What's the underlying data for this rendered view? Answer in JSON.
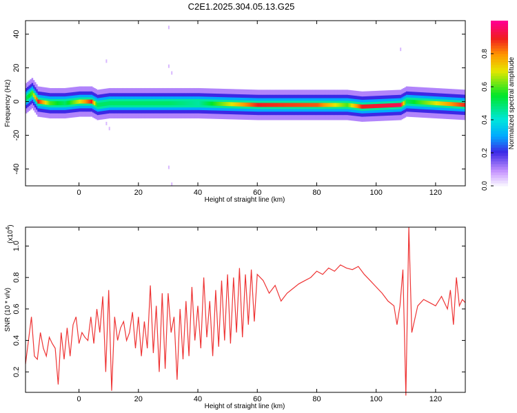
{
  "title": "C2E1.2025.304.05.13.G25",
  "colors": {
    "snr_line": "#ee3333",
    "axis": "#000000"
  },
  "chart_data": [
    {
      "type": "heatmap",
      "title": "C2E1.2025.304.05.13.G25",
      "xlabel": "Height of straight line (km)",
      "ylabel": "Frequency (Hz)",
      "xlim": [
        -18,
        130
      ],
      "ylim": [
        -50,
        48
      ],
      "x_ticks": [
        0,
        20,
        40,
        60,
        80,
        100,
        120
      ],
      "y_ticks": [
        -40,
        -20,
        0,
        20,
        40
      ],
      "colorbar": {
        "label": "Normalized spectral amplitude",
        "ticks": [
          "0.0",
          "0.2",
          "0.4",
          "0.6",
          "0.8"
        ],
        "range": [
          0,
          1
        ]
      },
      "ridge": {
        "description": "Dominant frequency ridge near 0 Hz",
        "x": [
          -18,
          -16,
          -14,
          -10,
          -5,
          0,
          4,
          6,
          10,
          20,
          30,
          40,
          60,
          80,
          90,
          95,
          108,
          110,
          130
        ],
        "frequency": [
          2,
          5,
          0,
          -1,
          -1,
          0,
          0,
          -2,
          -1,
          -1,
          -1,
          -1,
          -2,
          -2,
          -2,
          -3,
          -2,
          0,
          -2
        ],
        "amplitude": [
          0.5,
          0.6,
          0.9,
          0.6,
          0.5,
          0.7,
          0.9,
          0.5,
          0.5,
          0.5,
          0.5,
          0.45,
          0.9,
          0.85,
          0.6,
          0.9,
          0.95,
          0.5,
          0.9
        ]
      }
    },
    {
      "type": "line",
      "xlabel": "Height of straight line (km)",
      "ylabel": "SNR (10 * v/v)",
      "y_multiplier": "(x10",
      "y_multiplier_exp": "4",
      "y_multiplier_close": ")",
      "xlim": [
        -18,
        130
      ],
      "ylim": [
        0.07,
        1.12
      ],
      "x_ticks": [
        0,
        20,
        40,
        60,
        80,
        100,
        120
      ],
      "y_ticks": [
        0.2,
        0.4,
        0.6,
        0.8,
        1.0
      ],
      "series": [
        {
          "name": "SNR",
          "x": [
            -18,
            -17,
            -16,
            -15,
            -14,
            -13,
            -12,
            -11,
            -10,
            -9,
            -8,
            -7,
            -6,
            -5,
            -4,
            -3,
            -2,
            -1,
            0,
            1,
            2,
            3,
            4,
            5,
            6,
            7,
            8,
            9,
            10,
            11,
            12,
            13,
            14,
            15,
            16,
            17,
            18,
            19,
            20,
            21,
            22,
            23,
            24,
            25,
            26,
            27,
            28,
            29,
            30,
            31,
            32,
            33,
            34,
            35,
            36,
            37,
            38,
            39,
            40,
            41,
            42,
            43,
            44,
            45,
            46,
            47,
            48,
            49,
            50,
            51,
            52,
            53,
            54,
            55,
            56,
            57,
            58,
            59,
            60,
            62,
            64,
            66,
            68,
            70,
            72,
            74,
            76,
            78,
            80,
            82,
            84,
            86,
            88,
            90,
            92,
            94,
            96,
            98,
            100,
            102,
            104,
            106,
            107,
            108,
            109,
            110,
            111,
            112,
            114,
            116,
            118,
            120,
            122,
            124,
            125,
            126,
            127,
            128,
            129,
            130
          ],
          "values": [
            0.25,
            0.4,
            0.55,
            0.3,
            0.28,
            0.45,
            0.35,
            0.3,
            0.42,
            0.38,
            0.35,
            0.12,
            0.45,
            0.28,
            0.48,
            0.3,
            0.5,
            0.55,
            0.38,
            0.45,
            0.42,
            0.4,
            0.55,
            0.38,
            0.6,
            0.45,
            0.68,
            0.2,
            0.72,
            0.08,
            0.55,
            0.4,
            0.48,
            0.52,
            0.4,
            0.45,
            0.58,
            0.35,
            0.55,
            0.3,
            0.52,
            0.35,
            0.75,
            0.32,
            0.62,
            0.2,
            0.7,
            0.22,
            0.7,
            0.45,
            0.55,
            0.15,
            0.6,
            0.28,
            0.65,
            0.3,
            0.74,
            0.4,
            0.62,
            0.35,
            0.8,
            0.42,
            0.65,
            0.3,
            0.72,
            0.36,
            0.78,
            0.4,
            0.82,
            0.38,
            0.8,
            0.45,
            0.86,
            0.42,
            0.82,
            0.5,
            0.85,
            0.52,
            0.82,
            0.78,
            0.7,
            0.75,
            0.65,
            0.7,
            0.73,
            0.76,
            0.78,
            0.8,
            0.84,
            0.82,
            0.86,
            0.84,
            0.88,
            0.86,
            0.85,
            0.87,
            0.82,
            0.78,
            0.74,
            0.7,
            0.65,
            0.62,
            0.5,
            0.62,
            0.85,
            0.05,
            1.12,
            0.45,
            0.62,
            0.66,
            0.64,
            0.62,
            0.68,
            0.6,
            0.72,
            0.5,
            0.8,
            0.62,
            0.66,
            0.64
          ]
        }
      ]
    }
  ]
}
